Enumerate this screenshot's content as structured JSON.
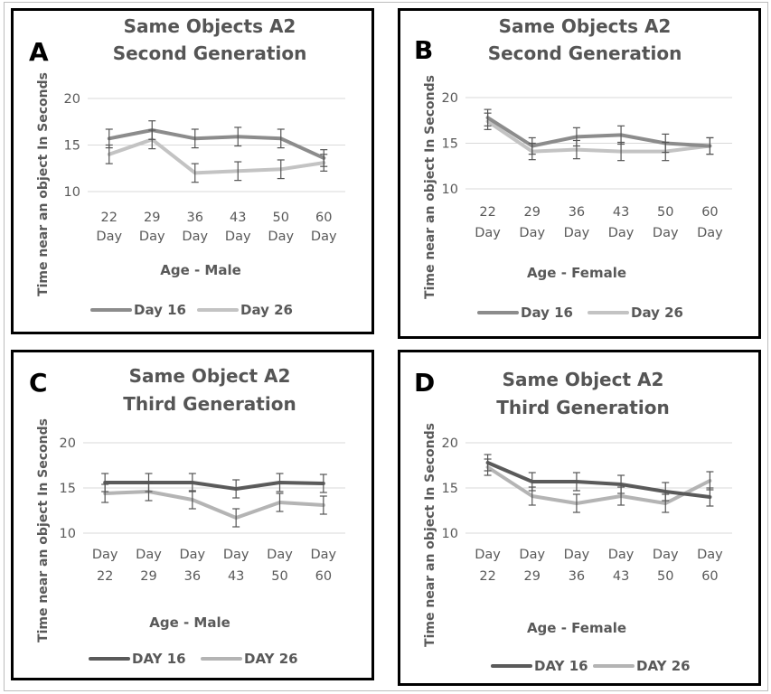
{
  "chart_data": [
    {
      "type": "line",
      "panel_letter": "A",
      "title_lines": [
        "Same Objects A2",
        "Second Generation"
      ],
      "xlabel": "Age - Male",
      "ylabel": "Time near an object  In Seconds",
      "ylim": [
        10,
        20
      ],
      "yticks": [
        10,
        15,
        20
      ],
      "categories": [
        [
          "22",
          "Day"
        ],
        [
          "29",
          "Day"
        ],
        [
          "36",
          "Day"
        ],
        [
          "43",
          "Day"
        ],
        [
          "50",
          "Day"
        ],
        [
          "60",
          "Day"
        ]
      ],
      "series": [
        {
          "name": "Day 16",
          "color": "#8c8c8c",
          "values": [
            15.7,
            16.6,
            15.7,
            15.9,
            15.7,
            13.6
          ],
          "errors": [
            1.0,
            1.0,
            1.0,
            1.0,
            1.0,
            0.9
          ]
        },
        {
          "name": "Day 26",
          "color": "#c3c3c3",
          "values": [
            14.0,
            15.6,
            12.0,
            12.2,
            12.4,
            13.1
          ],
          "errors": [
            1.0,
            1.0,
            1.0,
            1.0,
            1.0,
            0.9
          ]
        }
      ]
    },
    {
      "type": "line",
      "panel_letter": "B",
      "title_lines": [
        "Same Objects A2",
        "Second Generation"
      ],
      "xlabel": "Age - Female",
      "ylabel": "Time near an object  In Seconds",
      "ylim": [
        10,
        20
      ],
      "yticks": [
        10,
        15,
        20
      ],
      "categories": [
        [
          "22",
          "Day"
        ],
        [
          "29",
          "Day"
        ],
        [
          "36",
          "Day"
        ],
        [
          "43",
          "Day"
        ],
        [
          "50",
          "Day"
        ],
        [
          "60",
          "Day"
        ]
      ],
      "series": [
        {
          "name": "Day 16",
          "color": "#8c8c8c",
          "values": [
            17.8,
            14.7,
            15.7,
            15.9,
            15.0,
            14.7
          ],
          "errors": [
            0.9,
            0.9,
            1.0,
            1.0,
            1.0,
            0.9
          ]
        },
        {
          "name": "Day 26",
          "color": "#c3c3c3",
          "values": [
            17.4,
            14.1,
            14.3,
            14.1,
            14.1,
            14.7
          ],
          "errors": [
            0.9,
            0.9,
            1.0,
            1.0,
            1.0,
            0.9
          ]
        }
      ]
    },
    {
      "type": "line",
      "panel_letter": "C",
      "title_lines": [
        "Same Object A2",
        "Third Generation"
      ],
      "xlabel": "Age - Male",
      "ylabel": "Time near an object  In Seconds",
      "ylim": [
        10,
        20
      ],
      "yticks": [
        10,
        15,
        20
      ],
      "categories": [
        [
          "Day",
          "22"
        ],
        [
          "Day",
          "29"
        ],
        [
          "Day",
          "36"
        ],
        [
          "Day",
          "43"
        ],
        [
          "Day",
          "50"
        ],
        [
          "Day",
          "60"
        ]
      ],
      "series": [
        {
          "name": "DAY 16",
          "color": "#5a5a5a",
          "values": [
            15.6,
            15.6,
            15.6,
            14.9,
            15.6,
            15.5
          ],
          "errors": [
            1.0,
            1.0,
            1.0,
            1.0,
            1.0,
            1.0
          ]
        },
        {
          "name": "DAY 26",
          "color": "#b4b4b4",
          "values": [
            14.4,
            14.6,
            13.7,
            11.7,
            13.4,
            13.1
          ],
          "errors": [
            1.0,
            1.0,
            1.0,
            1.0,
            1.0,
            1.0
          ]
        }
      ]
    },
    {
      "type": "line",
      "panel_letter": "D",
      "title_lines": [
        "Same Object A2",
        "Third Generation"
      ],
      "xlabel": "Age - Female",
      "ylabel": "Time near an object  In Seconds",
      "ylim": [
        10,
        20
      ],
      "yticks": [
        10,
        15,
        20
      ],
      "categories": [
        [
          "Day",
          "22"
        ],
        [
          "Day",
          "29"
        ],
        [
          "Day",
          "36"
        ],
        [
          "Day",
          "43"
        ],
        [
          "Day",
          "50"
        ],
        [
          "Day",
          "60"
        ]
      ],
      "series": [
        {
          "name": "DAY 16",
          "color": "#5a5a5a",
          "values": [
            17.8,
            15.7,
            15.7,
            15.4,
            14.6,
            14.0
          ],
          "errors": [
            0.9,
            1.0,
            1.0,
            1.0,
            1.0,
            1.0
          ]
        },
        {
          "name": "DAY 26",
          "color": "#b4b4b4",
          "values": [
            17.3,
            14.1,
            13.3,
            14.1,
            13.3,
            15.8
          ],
          "errors": [
            0.9,
            1.0,
            1.0,
            1.0,
            1.0,
            1.0
          ]
        }
      ]
    }
  ]
}
